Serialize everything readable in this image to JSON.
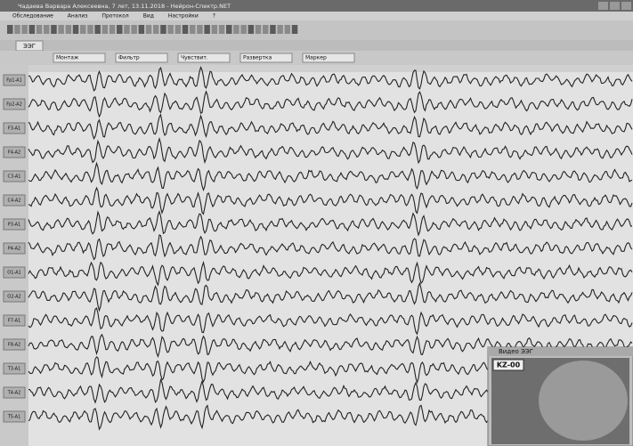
{
  "window": {
    "title": "Чадаева Варвара Алексеевна, 7 лет, 13.11.2018 - Нейрон-Спектр.NET"
  },
  "menu": [
    "Обследование",
    "Анализ",
    "Протокол",
    "Вид",
    "Настройки",
    "?"
  ],
  "tab": "ЭЭГ",
  "toolbar2": [
    "Монтаж",
    "Фильтр",
    "Чувствит.",
    "Развертка",
    "Маркер"
  ],
  "channels": [
    "Fp1-A1",
    "Fp2-A2",
    "F3-A1",
    "F4-A2",
    "C3-A1",
    "C4-A2",
    "P3-A1",
    "P4-A2",
    "O1-A1",
    "O2-A2",
    "F7-A1",
    "F8-A2",
    "T3-A1",
    "T4-A2",
    "T5-A1"
  ],
  "video": {
    "title": "Видео ЭЭГ",
    "label": "KZ-00"
  }
}
